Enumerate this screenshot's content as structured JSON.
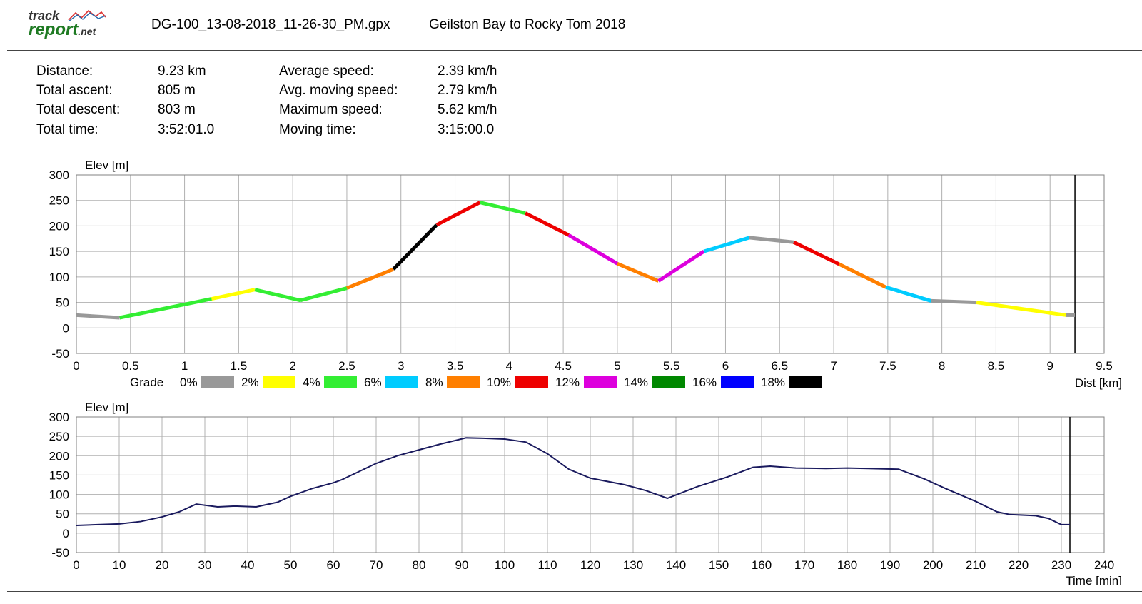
{
  "header": {
    "logo_top": "track",
    "logo_bottom": "report",
    "logo_suffix": ".net",
    "file_name": "DG-100_13-08-2018_11-26-30_PM.gpx",
    "track_name": "Geilston Bay to Rocky Tom 2018"
  },
  "stats": [
    {
      "label": "Distance:",
      "value": "9.23 km"
    },
    {
      "label": "Total ascent:",
      "value": "805 m"
    },
    {
      "label": "Total descent:",
      "value": "803 m"
    },
    {
      "label": "Total time:",
      "value": "3:52:01.0"
    },
    {
      "label": "Average speed:",
      "value": "2.39 km/h"
    },
    {
      "label": "Avg. moving speed:",
      "value": "2.79 km/h"
    },
    {
      "label": "Maximum speed:",
      "value": "5.62 km/h"
    },
    {
      "label": "Moving time:",
      "value": "3:15:00.0"
    }
  ],
  "chart_data": [
    {
      "type": "line",
      "ylabel": "Elev [m]",
      "xlabel": "Dist [km]",
      "ylim": [
        -50,
        300
      ],
      "xlim": [
        0,
        9.5
      ],
      "yticks": [
        "300",
        "250",
        "200",
        "150",
        "100",
        "50",
        "0",
        "-50"
      ],
      "xticks": [
        "0",
        "0.5",
        "1",
        "1.5",
        "2",
        "2.5",
        "3",
        "3.5",
        "4",
        "4.5",
        "5",
        "5.5",
        "6",
        "6.5",
        "7",
        "7.5",
        "8",
        "8.5",
        "9",
        "9.5"
      ],
      "grid": true,
      "end_marker_x": 9.23,
      "legend": {
        "title": "Grade",
        "entries": [
          {
            "label": "0%",
            "color": "#999999"
          },
          {
            "label": "2%",
            "color": "#ffff00"
          },
          {
            "label": "4%",
            "color": "#33ee33"
          },
          {
            "label": "6%",
            "color": "#00ccff"
          },
          {
            "label": "8%",
            "color": "#ff7f00"
          },
          {
            "label": "10%",
            "color": "#ee0000"
          },
          {
            "label": "12%",
            "color": "#dd00dd"
          },
          {
            "label": "14%",
            "color": "#008800"
          },
          {
            "label": "16%",
            "color": "#0000ff"
          },
          {
            "label": "18%",
            "color": "#000000"
          }
        ]
      },
      "segments": [
        {
          "x": [
            0,
            0.4
          ],
          "y": [
            25,
            20
          ],
          "color": "#999999"
        },
        {
          "x": [
            0.4,
            1.25
          ],
          "y": [
            20,
            57
          ],
          "color": "#33ee33"
        },
        {
          "x": [
            1.25,
            1.65
          ],
          "y": [
            57,
            75
          ],
          "color": "#ffff00"
        },
        {
          "x": [
            1.65,
            2.07
          ],
          "y": [
            75,
            54
          ],
          "color": "#33ee33"
        },
        {
          "x": [
            2.07,
            2.5
          ],
          "y": [
            54,
            78
          ],
          "color": "#33ee33"
        },
        {
          "x": [
            2.5,
            2.93
          ],
          "y": [
            78,
            115
          ],
          "color": "#ff7f00"
        },
        {
          "x": [
            2.93,
            3.33
          ],
          "y": [
            115,
            202
          ],
          "color": "#000000"
        },
        {
          "x": [
            3.33,
            3.73
          ],
          "y": [
            202,
            246
          ],
          "color": "#ee0000"
        },
        {
          "x": [
            3.73,
            4.15
          ],
          "y": [
            246,
            225
          ],
          "color": "#33ee33"
        },
        {
          "x": [
            4.15,
            4.55
          ],
          "y": [
            225,
            182
          ],
          "color": "#ee0000"
        },
        {
          "x": [
            4.55,
            5.0
          ],
          "y": [
            182,
            126
          ],
          "color": "#dd00dd"
        },
        {
          "x": [
            5.0,
            5.38
          ],
          "y": [
            126,
            92
          ],
          "color": "#ff7f00"
        },
        {
          "x": [
            5.38,
            5.8
          ],
          "y": [
            92,
            150
          ],
          "color": "#dd00dd"
        },
        {
          "x": [
            5.8,
            6.22
          ],
          "y": [
            150,
            177
          ],
          "color": "#00ccff"
        },
        {
          "x": [
            6.22,
            6.63
          ],
          "y": [
            177,
            168
          ],
          "color": "#999999"
        },
        {
          "x": [
            6.63,
            7.05
          ],
          "y": [
            168,
            125
          ],
          "color": "#ee0000"
        },
        {
          "x": [
            7.05,
            7.48
          ],
          "y": [
            125,
            80
          ],
          "color": "#ff7f00"
        },
        {
          "x": [
            7.48,
            7.9
          ],
          "y": [
            80,
            53
          ],
          "color": "#00ccff"
        },
        {
          "x": [
            7.9,
            8.32
          ],
          "y": [
            53,
            50
          ],
          "color": "#999999"
        },
        {
          "x": [
            8.32,
            9.15
          ],
          "y": [
            50,
            25
          ],
          "color": "#ffff00"
        },
        {
          "x": [
            9.15,
            9.23
          ],
          "y": [
            25,
            25
          ],
          "color": "#999999"
        }
      ]
    },
    {
      "type": "line",
      "ylabel": "Elev [m]",
      "xlabel": "Time [min]",
      "ylim": [
        -50,
        300
      ],
      "xlim": [
        0,
        240
      ],
      "yticks": [
        "300",
        "250",
        "200",
        "150",
        "100",
        "50",
        "0",
        "-50"
      ],
      "xticks": [
        "0",
        "10",
        "20",
        "30",
        "40",
        "50",
        "60",
        "70",
        "80",
        "90",
        "100",
        "110",
        "120",
        "130",
        "140",
        "150",
        "160",
        "170",
        "180",
        "190",
        "200",
        "210",
        "220",
        "230",
        "240"
      ],
      "grid": true,
      "end_marker_x": 232,
      "series": [
        {
          "color": "#1a1a5e",
          "x": [
            0,
            5,
            10,
            15,
            20,
            24,
            28,
            33,
            37,
            42,
            47,
            50,
            55,
            60,
            62,
            70,
            75,
            80,
            85,
            88,
            91,
            95,
            100,
            105,
            110,
            115,
            120,
            128,
            133,
            138,
            145,
            152,
            158,
            162,
            168,
            175,
            180,
            185,
            192,
            198,
            203,
            210,
            215,
            218,
            224,
            227,
            230,
            232
          ],
          "y": [
            20,
            22,
            24,
            30,
            42,
            55,
            75,
            68,
            70,
            68,
            80,
            95,
            115,
            130,
            138,
            180,
            200,
            215,
            230,
            238,
            246,
            245,
            243,
            235,
            205,
            165,
            142,
            125,
            110,
            90,
            120,
            145,
            170,
            173,
            168,
            167,
            168,
            167,
            165,
            140,
            115,
            82,
            55,
            48,
            45,
            38,
            22,
            22
          ]
        }
      ]
    }
  ]
}
